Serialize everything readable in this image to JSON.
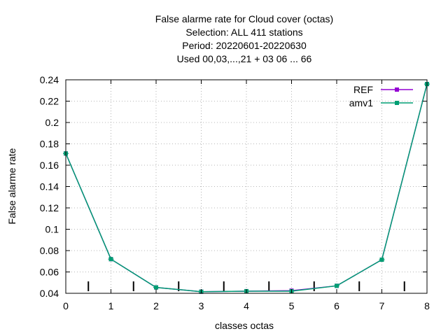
{
  "chart_data": {
    "type": "line",
    "title_lines": [
      "False alarme rate  for Cloud cover (octas)",
      "Selection: ALL     411 stations",
      "Period: 20220601-20220630",
      "Used  00,03,...,21  + 03 06 ... 66"
    ],
    "xlabel": "classes octas",
    "ylabel": "False alarme rate",
    "xlim": [
      0,
      8
    ],
    "ylim": [
      0.04,
      0.24
    ],
    "x_ticks": [
      0,
      1,
      2,
      3,
      4,
      5,
      6,
      7,
      8
    ],
    "y_ticks": [
      0.04,
      0.06,
      0.08,
      0.1,
      0.12,
      0.14,
      0.16,
      0.18,
      0.2,
      0.22,
      0.24
    ],
    "y_tick_labels": [
      "0.04",
      "0.06",
      "0.08",
      "0.1",
      "0.12",
      "0.14",
      "0.16",
      "0.18",
      "0.2",
      "0.22",
      "0.24"
    ],
    "class_boundaries": [
      0.5,
      1.5,
      2.5,
      3.5,
      4.5,
      5.5,
      6.5,
      7.5
    ],
    "grid": true,
    "legend_position": "top-right",
    "x": [
      0,
      1,
      2,
      3,
      4,
      5,
      6,
      7,
      8
    ],
    "series": [
      {
        "name": "REF",
        "color": "#9400d3",
        "values": [
          0.171,
          0.072,
          0.0455,
          0.0415,
          0.042,
          0.0425,
          0.047,
          0.0715,
          0.236
        ]
      },
      {
        "name": "amv1",
        "color": "#009e73",
        "values": [
          0.171,
          0.072,
          0.0455,
          0.0415,
          0.042,
          0.042,
          0.047,
          0.0715,
          0.236
        ]
      }
    ]
  }
}
